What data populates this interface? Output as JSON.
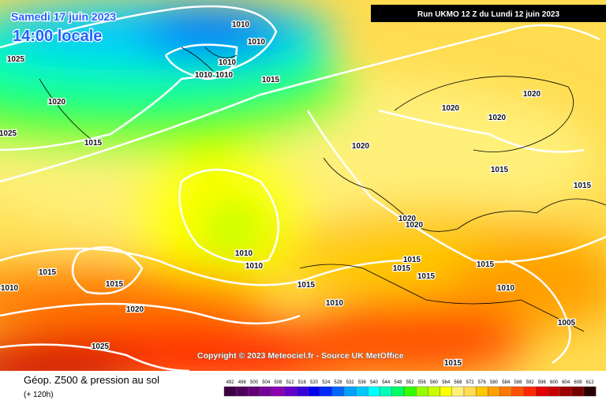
{
  "header": {
    "date": "Samedi 17 juin 2023",
    "time": "14:00 locale",
    "run": "Run UKMO 12 Z du Lundi 12 juin 2023"
  },
  "copyright": "Copyright © 2023 Meteociel.fr - Source UK MetOffice",
  "footer": {
    "title": "Géop. Z500 & pression au sol",
    "lead": "(+ 120h)"
  },
  "legend": {
    "levels": [
      492,
      496,
      500,
      504,
      508,
      512,
      516,
      520,
      524,
      528,
      532,
      536,
      540,
      544,
      548,
      552,
      556,
      560,
      564,
      568,
      572,
      576,
      580,
      584,
      588,
      592,
      596,
      600,
      604,
      608,
      612
    ],
    "colors": [
      "#3c0040",
      "#50005a",
      "#640078",
      "#78009a",
      "#8c00b4",
      "#6400c8",
      "#3c00dc",
      "#0000f0",
      "#0028ff",
      "#0064ff",
      "#00a0ff",
      "#00c8ff",
      "#00ffff",
      "#00ffb4",
      "#00ff64",
      "#32ff00",
      "#96ff00",
      "#c8ff00",
      "#ffff00",
      "#fff07a",
      "#ffdc50",
      "#ffc800",
      "#ffa000",
      "#ff7800",
      "#ff5000",
      "#ff2800",
      "#e60000",
      "#c80000",
      "#a00000",
      "#780000",
      "#2a0000"
    ]
  },
  "isobars": [
    "1010",
    "1010",
    "1010",
    "1010",
    "1010",
    "1025",
    "1015",
    "1020",
    "1025",
    "1015",
    "1020",
    "1020",
    "1020",
    "1020",
    "1015",
    "1015",
    "1020",
    "1020",
    "1010",
    "1010",
    "1015",
    "1015",
    "1010",
    "1015",
    "1015",
    "1015",
    "1015",
    "1015",
    "1010",
    "1010",
    "1020",
    "1005",
    "1025",
    "1015"
  ]
}
